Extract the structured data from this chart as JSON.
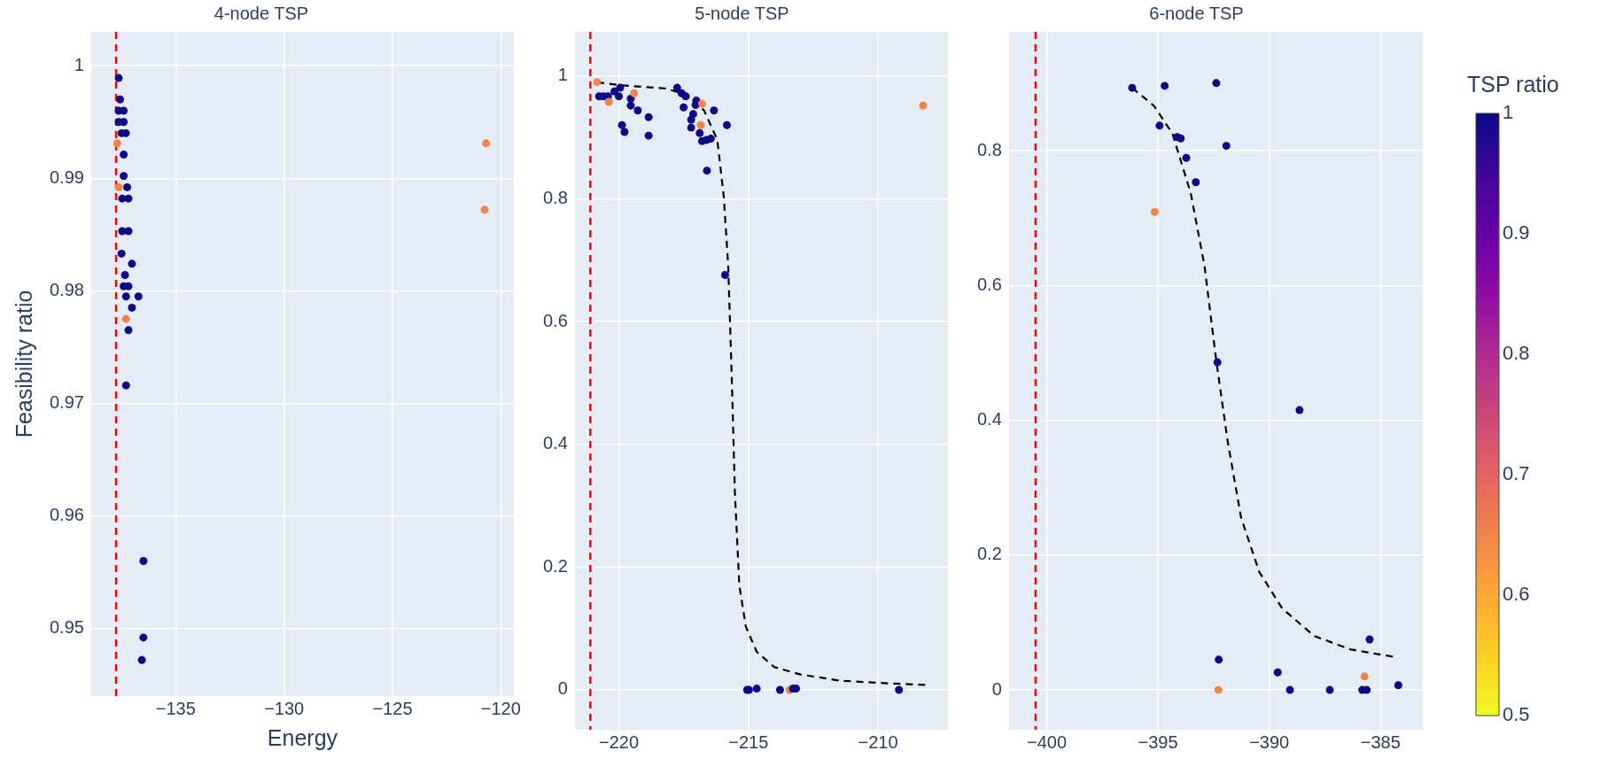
{
  "chart_data": [
    {
      "type": "scatter",
      "title": "4-node TSP",
      "xlabel": "Energy",
      "ylabel": "Feasibility ratio",
      "grid": true,
      "marker": "circle",
      "xlim": [
        -138.9,
        -119.4
      ],
      "ylim": [
        0.944,
        1.003
      ],
      "xticks": [
        {
          "value": -135,
          "label": "−135"
        },
        {
          "value": -130,
          "label": "−130"
        },
        {
          "value": -125,
          "label": "−125"
        },
        {
          "value": -120,
          "label": "−120"
        }
      ],
      "yticks": [
        0.95,
        0.96,
        0.97,
        0.98,
        0.99,
        1
      ],
      "ref_lines": [
        {
          "axis": "x",
          "value": -137.75,
          "color": "#ff0000",
          "line_style": "dashed"
        }
      ],
      "series": [
        {
          "x": [
            -137.63,
            -137.57,
            -137.63,
            -137.4,
            -137.63,
            -137.4,
            -137.5,
            -137.3,
            -137.7,
            -137.4,
            -137.4,
            -137.63,
            -137.24,
            -137.47,
            -137.18,
            -137.47,
            -137.18,
            -137.5,
            -137.02,
            -137.34,
            -137.4,
            -137.18,
            -137.29,
            -136.72,
            -137.02,
            -137.29,
            -137.18,
            -137.29,
            -136.49,
            -136.49,
            -136.56,
            -120.68,
            -120.75
          ],
          "values": [
            0.9989,
            0.997,
            0.996,
            0.996,
            0.995,
            0.995,
            0.994,
            0.994,
            0.9931,
            0.9921,
            0.9902,
            0.9892,
            0.9892,
            0.9882,
            0.9882,
            0.9853,
            0.9853,
            0.9833,
            0.9824,
            0.9814,
            0.9804,
            0.9804,
            0.9795,
            0.9795,
            0.9785,
            0.9775,
            0.9765,
            0.9716,
            0.956,
            0.9492,
            0.9472,
            0.9931,
            0.9872
          ],
          "colors": [
            "#0d0887",
            "#0d0887",
            "#0d0887",
            "#0d0887",
            "#0d0887",
            "#0d0887",
            "#0d0887",
            "#0d0887",
            "#f2844b",
            "#0d0887",
            "#0d0887",
            "#f2844b",
            "#0d0887",
            "#0d0887",
            "#0d0887",
            "#0d0887",
            "#0d0887",
            "#0d0887",
            "#0d0887",
            "#0d0887",
            "#0d0887",
            "#0d0887",
            "#0d0887",
            "#0d0887",
            "#0d0887",
            "#f2844b",
            "#0d0887",
            "#0d0887",
            "#0d0887",
            "#0d0887",
            "#0d0887",
            "#f2844b",
            "#f2844b"
          ]
        }
      ]
    },
    {
      "type": "scatter",
      "title": "5-node TSP",
      "grid": true,
      "marker": "circle",
      "xlim": [
        -221.7,
        -207.3
      ],
      "ylim": [
        -0.065,
        1.072
      ],
      "xticks": [
        {
          "value": -220,
          "label": "−220"
        },
        {
          "value": -215,
          "label": "−215"
        },
        {
          "value": -210,
          "label": "−210"
        }
      ],
      "yticks": [
        0,
        0.2,
        0.4,
        0.6,
        0.8,
        1
      ],
      "ref_lines": [
        {
          "axis": "x",
          "value": -221.1,
          "color": "#ff0000",
          "line_style": "dashed"
        }
      ],
      "series": [
        {
          "x": [
            -220.84,
            -220.76,
            -220.59,
            -220.42,
            -220.39,
            -220.17,
            -219.95,
            -220.0,
            -219.88,
            -219.78,
            -219.54,
            -219.54,
            -219.41,
            -219.27,
            -218.85,
            -218.85,
            -217.75,
            -217.58,
            -217.42,
            -217.5,
            -217.21,
            -217.21,
            -217.13,
            -217.01,
            -217.04,
            -216.79,
            -216.84,
            -216.88,
            -216.79,
            -216.62,
            -216.45,
            -216.33,
            -216.6,
            -215.83,
            -215.9,
            -208.26,
            -215.05,
            -214.98,
            -214.68,
            -213.78,
            -213.41,
            -213.28,
            -213.16,
            -209.19
          ],
          "values": [
            0.99,
            0.967,
            0.967,
            0.967,
            0.958,
            0.975,
            0.981,
            0.967,
            0.92,
            0.909,
            0.963,
            0.952,
            0.972,
            0.944,
            0.933,
            0.903,
            0.981,
            0.972,
            0.967,
            0.949,
            0.929,
            0.916,
            0.938,
            0.96,
            0.953,
            0.955,
            0.92,
            0.907,
            0.894,
            0.896,
            0.898,
            0.944,
            0.846,
            0.92,
            0.676,
            0.952,
            0,
            0,
            0.002,
            0,
            0,
            0.002,
            0.002,
            0
          ],
          "colors": [
            "#f2844b",
            "#0d0887",
            "#0d0887",
            "#0d0887",
            "#f2844b",
            "#0d0887",
            "#0d0887",
            "#0d0887",
            "#0d0887",
            "#0d0887",
            "#0d0887",
            "#0d0887",
            "#f2844b",
            "#0d0887",
            "#0d0887",
            "#0d0887",
            "#0d0887",
            "#0d0887",
            "#0d0887",
            "#0d0887",
            "#0d0887",
            "#0d0887",
            "#0d0887",
            "#0d0887",
            "#0d0887",
            "#f2844b",
            "#f2844b",
            "#0d0887",
            "#0d0887",
            "#0d0887",
            "#0d0887",
            "#0d0887",
            "#0d0887",
            "#0d0887",
            "#0d0887",
            "#f2844b",
            "#0d0887",
            "#0d0887",
            "#0d0887",
            "#0d0887",
            "#f2844b",
            "#0d0887",
            "#0d0887",
            "#0d0887"
          ]
        },
        {
          "type": "line",
          "color": "#000000",
          "line_style": "dashed",
          "marker": "none",
          "x": [
            -220.84,
            -219.92,
            -218.23,
            -217.38,
            -216.71,
            -216.2,
            -215.95,
            -215.78,
            -215.64,
            -215.52,
            -215.35,
            -215.1,
            -214.68,
            -214.0,
            -212.99,
            -211.47,
            -209.78,
            -208.18
          ],
          "values": [
            0.99,
            0.985,
            0.98,
            0.97,
            0.944,
            0.896,
            0.803,
            0.691,
            0.505,
            0.319,
            0.17,
            0.103,
            0.062,
            0.037,
            0.025,
            0.015,
            0.011,
            0.008
          ]
        }
      ]
    },
    {
      "type": "scatter",
      "title": "6-node TSP",
      "grid": true,
      "marker": "circle",
      "xlim": [
        -401.7,
        -383.1
      ],
      "ylim": [
        -0.059,
        0.976
      ],
      "xticks": [
        {
          "value": -400,
          "label": "−400"
        },
        {
          "value": -395,
          "label": "−395"
        },
        {
          "value": -390,
          "label": "−390"
        },
        {
          "value": -385,
          "label": "−385"
        }
      ],
      "yticks": [
        0,
        0.2,
        0.4,
        0.6,
        0.8
      ],
      "ref_lines": [
        {
          "axis": "x",
          "value": -400.5,
          "color": "#ff0000",
          "line_style": "dashed"
        }
      ],
      "clabel": "TSP ratio",
      "clim": [
        0.5,
        1
      ],
      "cticks": [
        0.5,
        0.6,
        0.7,
        0.8,
        0.9,
        1
      ],
      "series": [
        {
          "x": [
            -396.16,
            -394.7,
            -392.38,
            -394.93,
            -394.14,
            -393.98,
            -391.93,
            -393.73,
            -393.3,
            -395.15,
            -392.33,
            -388.64,
            -392.27,
            -392.29,
            -389.62,
            -389.07,
            -387.28,
            -385.82,
            -385.62,
            -385.72,
            -385.49,
            -384.2
          ],
          "values": [
            0.893,
            0.896,
            0.9,
            0.837,
            0.82,
            0.818,
            0.807,
            0.789,
            0.753,
            0.709,
            0.486,
            0.415,
            0.045,
            0,
            0.026,
            0,
            0,
            0,
            0,
            0.02,
            0.075,
            0.007
          ],
          "colors": [
            "#0d0887",
            "#0d0887",
            "#0d0887",
            "#0d0887",
            "#0d0887",
            "#0d0887",
            "#0d0887",
            "#0d0887",
            "#0d0887",
            "#f2844b",
            "#0d0887",
            "#0d0887",
            "#0d0887",
            "#f2844b",
            "#0d0887",
            "#0d0887",
            "#0d0887",
            "#0d0887",
            "#0d0887",
            "#f2844b",
            "#0d0887",
            "#0d0887"
          ]
        },
        {
          "type": "line",
          "color": "#000000",
          "line_style": "dashed",
          "marker": "none",
          "x": [
            -396.16,
            -395.17,
            -394.35,
            -393.53,
            -392.91,
            -392.4,
            -391.88,
            -391.27,
            -390.45,
            -389.42,
            -387.98,
            -386.34,
            -384.38
          ],
          "values": [
            0.893,
            0.866,
            0.825,
            0.737,
            0.629,
            0.493,
            0.371,
            0.256,
            0.175,
            0.121,
            0.08,
            0.06,
            0.049
          ]
        }
      ]
    }
  ]
}
